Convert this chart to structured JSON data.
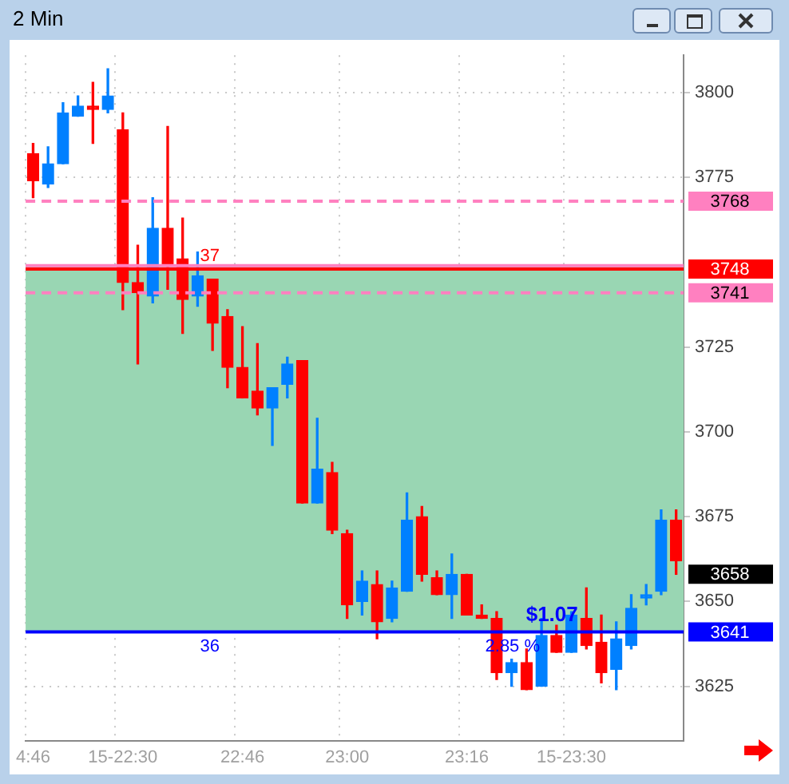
{
  "chart_data": {
    "type": "candlestick",
    "title": "2 Min",
    "categories": [
      "4:46",
      null,
      null,
      null,
      null,
      null,
      "15-22:30",
      null,
      null,
      null,
      null,
      null,
      null,
      null,
      "22:46",
      null,
      null,
      null,
      null,
      null,
      null,
      "23:00",
      null,
      null,
      null,
      null,
      null,
      null,
      null,
      "23:16",
      null,
      null,
      null,
      null,
      null,
      null,
      "15-23:30",
      null,
      null,
      null,
      null,
      null,
      null,
      null
    ],
    "ohlc": [
      [
        3782,
        3785,
        3769,
        3774
      ],
      [
        3773,
        3784,
        3772,
        3779
      ],
      [
        3779,
        3797,
        3779,
        3794
      ],
      [
        3793,
        3799,
        3793,
        3796
      ],
      [
        3796,
        3803,
        3785,
        3795
      ],
      [
        3795,
        3807,
        3794,
        3799
      ],
      [
        3789,
        3794,
        3736,
        3744
      ],
      [
        3744,
        3755,
        3720,
        3741
      ],
      [
        3740,
        3769,
        3738,
        3760
      ],
      [
        3760,
        3790,
        3742,
        3749
      ],
      [
        3751,
        3763,
        3729,
        3739
      ],
      [
        3740,
        3753,
        3737,
        3746
      ],
      [
        3745,
        3745,
        3724,
        3732
      ],
      [
        3734,
        3736,
        3713,
        3719
      ],
      [
        3719,
        3731,
        3710,
        3710
      ],
      [
        3712,
        3726,
        3705,
        3707
      ],
      [
        3707,
        3713,
        3696,
        3713
      ],
      [
        3714,
        3722,
        3710,
        3720
      ],
      [
        3721,
        3721,
        3679,
        3679
      ],
      [
        3679,
        3704,
        3679,
        3689
      ],
      [
        3688,
        3691,
        3670,
        3671
      ],
      [
        3670,
        3671,
        3645,
        3649
      ],
      [
        3650,
        3659,
        3646,
        3656
      ],
      [
        3655,
        3659,
        3639,
        3644
      ],
      [
        3645,
        3656,
        3644,
        3654
      ],
      [
        3653,
        3682,
        3653,
        3674
      ],
      [
        3675,
        3678,
        3656,
        3658
      ],
      [
        3657,
        3659,
        3652,
        3652
      ],
      [
        3652,
        3664,
        3645,
        3658
      ],
      [
        3658,
        3658,
        3646,
        3646
      ],
      [
        3646,
        3649,
        3645,
        3645
      ],
      [
        3645,
        3647,
        3627,
        3629
      ],
      [
        3629,
        3633,
        3625,
        3632
      ],
      [
        3632,
        3636,
        3624,
        3624
      ],
      [
        3625,
        3645,
        3625,
        3640
      ],
      [
        3640,
        3643,
        3635,
        3635
      ],
      [
        3635,
        3647,
        3635,
        3646
      ],
      [
        3645,
        3654,
        3636,
        3637
      ],
      [
        3638,
        3646,
        3626,
        3629
      ],
      [
        3630,
        3644,
        3624,
        3639
      ],
      [
        3637,
        3652,
        3636,
        3648
      ],
      [
        3651,
        3655,
        3649,
        3652
      ],
      [
        3653,
        3677,
        3652,
        3674
      ],
      [
        3674,
        3677,
        3658,
        3662
      ]
    ],
    "colors": [
      "#ff0000",
      "#0080ff",
      "#0080ff",
      "#0080ff",
      "#ff0000",
      "#0080ff",
      "#ff0000",
      "#ff0000",
      "#0080ff",
      "#ff0000",
      "#ff0000",
      "#0080ff",
      "#ff0000",
      "#ff0000",
      "#ff0000",
      "#ff0000",
      "#0080ff",
      "#0080ff",
      "#ff0000",
      "#0080ff",
      "#ff0000",
      "#ff0000",
      "#0080ff",
      "#ff0000",
      "#0080ff",
      "#0080ff",
      "#ff0000",
      "#ff0000",
      "#0080ff",
      "#ff0000",
      "#ff0000",
      "#ff0000",
      "#0080ff",
      "#ff0000",
      "#0080ff",
      "#ff0000",
      "#0080ff",
      "#ff0000",
      "#ff0000",
      "#0080ff",
      "#0080ff",
      "#0080ff",
      "#0080ff",
      "#ff0000"
    ],
    "ylim": [
      3609,
      3811
    ],
    "yticks": [
      3625,
      3650,
      3675,
      3700,
      3725,
      3775,
      3800
    ],
    "grid": true,
    "bands": [
      {
        "axis": "y",
        "from": 3641,
        "to": 3749,
        "color": "#99d6b3"
      }
    ],
    "ref_lines": [
      {
        "axis": "y",
        "value": 3768,
        "label": "3768",
        "color": "#ff80c0",
        "line_style": "dashed"
      },
      {
        "axis": "y",
        "value": 3749,
        "label": null,
        "color": "#ff80c0",
        "line_style": "solid"
      },
      {
        "axis": "y",
        "value": 3748,
        "label": "3748",
        "color": "#ff0000",
        "line_style": "solid"
      },
      {
        "axis": "y",
        "value": 3741,
        "label": "3741",
        "color": "#ff80c0",
        "line_style": "dashed"
      },
      {
        "axis": "y",
        "value": 3641,
        "label": "3641",
        "color": "#0000ff",
        "line_style": "solid"
      }
    ],
    "annotations": [
      "37",
      "36",
      "$1.07",
      "2.85 %",
      "3658"
    ]
  }
}
